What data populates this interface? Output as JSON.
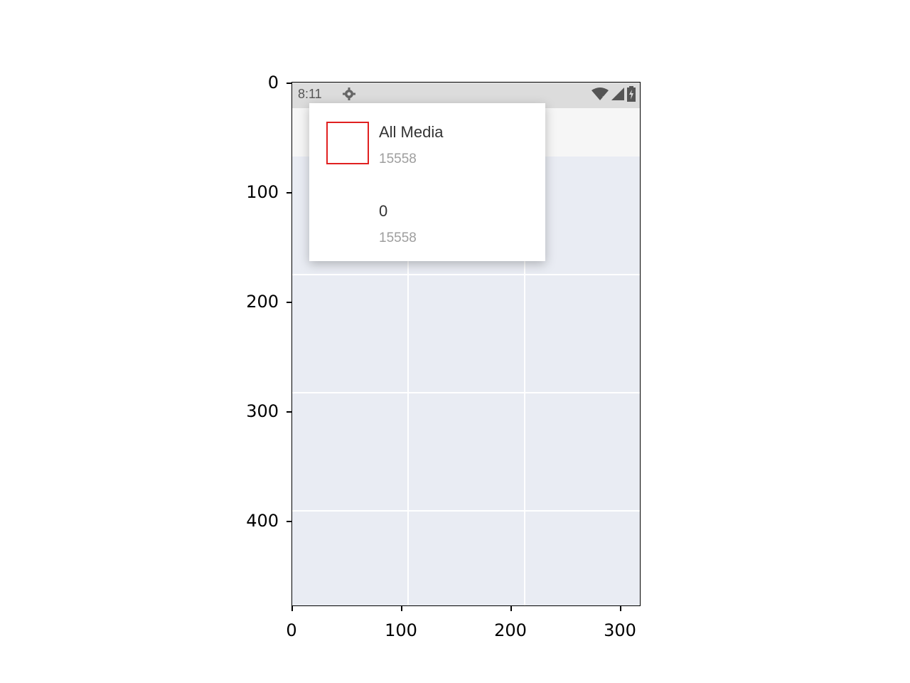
{
  "status_bar": {
    "time": "8:11",
    "icons": [
      "gear-icon",
      "wifi-icon",
      "signal-icon",
      "battery-icon"
    ]
  },
  "popup_menu": {
    "items": [
      {
        "title": "All Media",
        "count": "15558",
        "selected": true
      },
      {
        "title": "0",
        "count": "15558",
        "selected": false
      }
    ]
  },
  "axes": {
    "y_ticks": [
      "0",
      "100",
      "200",
      "300",
      "400"
    ],
    "x_ticks": [
      "0",
      "100",
      "200",
      "300"
    ]
  },
  "colors": {
    "selection_box": "#e02020",
    "grid_background": "#e9ecf3",
    "status_bar": "#dcdcdc"
  }
}
